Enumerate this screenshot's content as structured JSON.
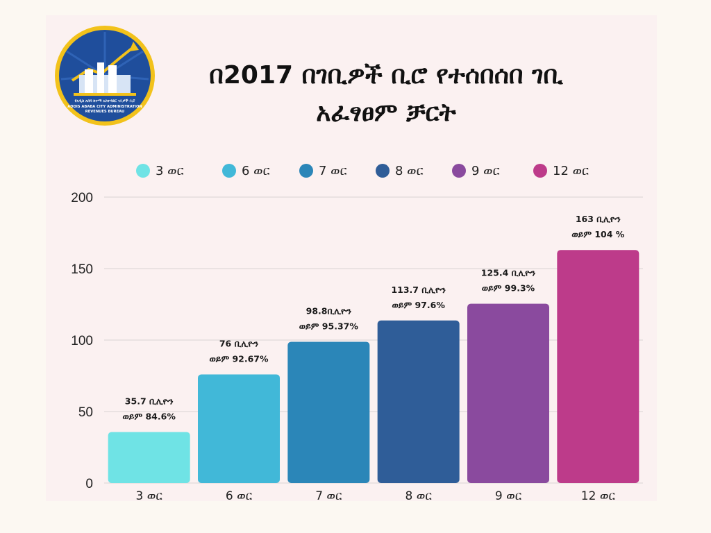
{
  "title": {
    "line1": "በ2017 በገቢዎች ቢሮ የተሰበሰበ ገቢ",
    "line2": "አፈፃፀም ቻርት"
  },
  "logo": {
    "line1": "የአዲስ አበባ ከተማ አስተዳደር ገቢዎች ቢሮ",
    "line2": "ADDIS ABABA CITY ADMINISTRATION",
    "line3": "REVENUES BUREAU",
    "ring_color": "#f2c21b",
    "bg_color": "#1f4e9c"
  },
  "chart_data": {
    "type": "bar",
    "categories": [
      "3 ወር",
      "6 ወር",
      "7 ወር",
      "8 ወር",
      "9 ወር",
      "12 ወር"
    ],
    "values": [
      35.7,
      76,
      98.8,
      113.7,
      125.4,
      163
    ],
    "colors": [
      "#6fe3e5",
      "#41b8d8",
      "#2b86b8",
      "#2f5d98",
      "#8a4a9e",
      "#bd3b8a"
    ],
    "data_labels": [
      [
        "35.7 ቢሊዮን",
        "ወይም 84.6%"
      ],
      [
        "76 ቢሊዮን",
        "ወይም 92.67%"
      ],
      [
        "98.8ቢሊዮን",
        "ወይም 95.37%"
      ],
      [
        "113.7 ቢሊዮን",
        "ወይም 97.6%"
      ],
      [
        "125.4 ቢሊዮን",
        "ወይም 99.3%"
      ],
      [
        "163 ቢሊዮን",
        "ወይም 104 %"
      ]
    ],
    "legend": [
      "3 ወር",
      "6 ወር",
      "7 ወር",
      "8 ወር",
      "9 ወር",
      "12 ወር"
    ],
    "yticks": [
      0,
      50,
      100,
      150,
      200
    ],
    "ylim": [
      0,
      200
    ],
    "grid": true,
    "legend_position": "top",
    "xlabel": "",
    "ylabel": ""
  }
}
